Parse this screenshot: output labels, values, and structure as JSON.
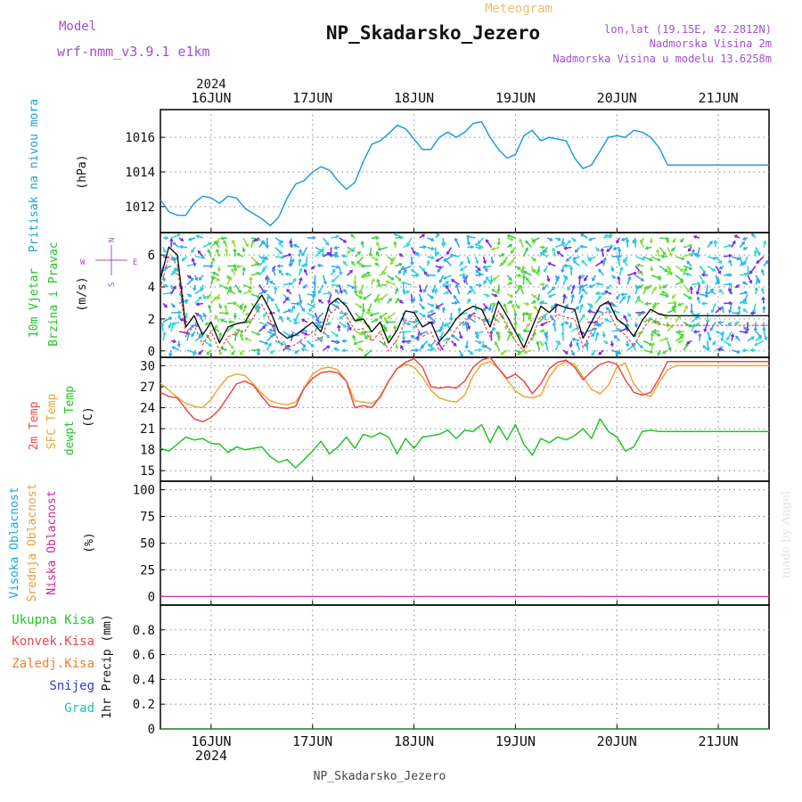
{
  "header": {
    "model_label": "Model",
    "model_name": "wrf-nmm_v3.9.1 e1km",
    "meteogram_label": "Meteogram",
    "station_title": "NP_Skadarsko_Jezero",
    "lonlat": "lon,lat (19.15E, 42.2812N)",
    "altitude": "Nadmorska Visina 2m",
    "model_altitude": "Nadmorska Visina u modelu 13.6258m",
    "year_top": "2024",
    "year_bottom": "2024",
    "footer_station": "NP_Skadarsko_Jezero",
    "credit": "made by Angel"
  },
  "colors": {
    "pressure": "#1e9fd8",
    "temp2m": "#ec4848",
    "sfc_temp": "#e8a93a",
    "dewpt": "#22c427",
    "high_cloud": "#19a6dc",
    "mid_cloud": "#e4a03c",
    "low_cloud": "#d9259a",
    "title_purple": "#a050d0",
    "meteogram_orange": "#e8c070",
    "total_precip": "#22c427",
    "conv_precip": "#ec4848",
    "frozen_precip": "#f08030",
    "snow": "#3434e0",
    "graupel": "#22c0b0"
  },
  "chart_data": [
    {
      "type": "line",
      "panel": "pressure",
      "ylabel_main": "Pritisak na nivou mora",
      "unit": "(hPa)",
      "x_tick_labels": [
        "16JUN",
        "17JUN",
        "18JUN",
        "19JUN",
        "20JUN",
        "21JUN"
      ],
      "ylim": [
        1010.5,
        1017.6
      ],
      "yticks": [
        1012,
        1014,
        1016
      ],
      "grid": true,
      "series": [
        {
          "name": "Pritisak na nivou mora",
          "x_hours": [
            0,
            2,
            4,
            6,
            8,
            10,
            12,
            14,
            16,
            18,
            20,
            22,
            24,
            26,
            28,
            30,
            32,
            34,
            36,
            38,
            40,
            42,
            44,
            46,
            48,
            50,
            52,
            54,
            56,
            58,
            60,
            62,
            64,
            66,
            68,
            70,
            72,
            74,
            76,
            78,
            80,
            82,
            84,
            86,
            88,
            90,
            92,
            94,
            96,
            98,
            100,
            102,
            104,
            106,
            108,
            110,
            112,
            114,
            116,
            118,
            120,
            122,
            124,
            126,
            128,
            130,
            132,
            134,
            136,
            138,
            140,
            142,
            144
          ],
          "values": [
            1012.4,
            1011.7,
            1011.5,
            1011.5,
            1012.2,
            1012.6,
            1012.5,
            1012.2,
            1012.6,
            1012.5,
            1011.9,
            1011.6,
            1011.3,
            1010.9,
            1011.4,
            1012.5,
            1013.3,
            1013.5,
            1014.0,
            1014.3,
            1014.1,
            1013.5,
            1013.0,
            1013.4,
            1014.6,
            1015.6,
            1015.8,
            1016.2,
            1016.7,
            1016.5,
            1015.9,
            1015.3,
            1015.3,
            1016.0,
            1016.3,
            1016.0,
            1016.3,
            1016.8,
            1016.9,
            1016.0,
            1015.3,
            1014.8,
            1015.0,
            1016.1,
            1016.4,
            1015.8,
            1016.0,
            1015.9,
            1015.8,
            1014.8,
            1014.2,
            1014.4,
            1015.2,
            1016.0,
            1016.1,
            1016.0,
            1016.4,
            1016.3,
            1016.0,
            1015.4,
            1014.4,
            1014.4,
            1014.4,
            1014.4,
            1014.4,
            1014.4,
            1014.4,
            1014.4,
            1014.4,
            1014.4,
            1014.4,
            1014.4,
            1014.4
          ]
        }
      ]
    },
    {
      "type": "line",
      "panel": "wind",
      "ylabel_main": "10m Vjetar",
      "ylabel_sub": "Brzina i Pravac",
      "unit": "(m/s)",
      "compass": {
        "n": "N",
        "s": "S",
        "e": "E",
        "w": "W"
      },
      "ylim": [
        -0.4,
        7.4
      ],
      "yticks": [
        0,
        2,
        4,
        6
      ],
      "grid": true,
      "series": [
        {
          "name": "10m Vjetar",
          "x_hours": [
            0,
            2,
            4,
            6,
            8,
            10,
            12,
            14,
            16,
            18,
            20,
            22,
            24,
            26,
            28,
            30,
            32,
            34,
            36,
            38,
            40,
            42,
            44,
            46,
            48,
            50,
            52,
            54,
            56,
            58,
            60,
            62,
            64,
            66,
            68,
            70,
            72,
            74,
            76,
            78,
            80,
            82,
            84,
            86,
            88,
            90,
            92,
            94,
            96,
            98,
            100,
            102,
            104,
            106,
            108,
            110,
            112,
            114,
            116,
            118,
            120,
            122,
            124,
            126,
            128,
            130,
            132,
            134,
            136,
            138,
            140,
            142,
            144
          ],
          "values": [
            4.5,
            6.5,
            6.0,
            1.5,
            2.2,
            1.0,
            1.8,
            0.5,
            1.5,
            1.7,
            1.8,
            2.7,
            3.5,
            2.5,
            1.2,
            0.8,
            1.0,
            1.4,
            1.8,
            1.2,
            2.9,
            3.3,
            2.8,
            1.9,
            2.0,
            1.2,
            1.8,
            0.5,
            1.3,
            2.5,
            2.4,
            1.5,
            1.8,
            0.6,
            1.2,
            2.0,
            2.5,
            2.8,
            2.6,
            1.5,
            3.1,
            2.2,
            1.2,
            0.2,
            1.5,
            2.8,
            2.4,
            2.9,
            2.7,
            2.6,
            0.8,
            1.8,
            2.8,
            3.1,
            2.0,
            1.6,
            0.9,
            1.9,
            2.6,
            2.3,
            2.2,
            2.2,
            2.2,
            2.2,
            2.2,
            2.2,
            2.2,
            2.2,
            2.2,
            2.2,
            2.2,
            2.2,
            2.2
          ]
        }
      ]
    },
    {
      "type": "line",
      "panel": "temperature",
      "ylabel_lines": [
        "2m Temp",
        "SFC Temp",
        "dewpt Temp"
      ],
      "unit": "(C)",
      "ylim": [
        13.5,
        31.2
      ],
      "yticks": [
        15,
        18,
        21,
        24,
        27,
        30
      ],
      "grid": true,
      "series": [
        {
          "name": "2m Temp",
          "x_hours": [
            0,
            2,
            4,
            6,
            8,
            10,
            12,
            14,
            16,
            18,
            20,
            22,
            24,
            26,
            28,
            30,
            32,
            34,
            36,
            38,
            40,
            42,
            44,
            46,
            48,
            50,
            52,
            54,
            56,
            58,
            60,
            62,
            64,
            66,
            68,
            70,
            72,
            74,
            76,
            78,
            80,
            82,
            84,
            86,
            88,
            90,
            92,
            94,
            96,
            98,
            100,
            102,
            104,
            106,
            108,
            110,
            112,
            114,
            116,
            118,
            120,
            122,
            124,
            126,
            128,
            130,
            132,
            134,
            136,
            138,
            140,
            142,
            144
          ],
          "values": [
            26.2,
            25.6,
            25.4,
            23.8,
            22.4,
            22.0,
            22.6,
            23.8,
            25.6,
            27.4,
            27.8,
            27.2,
            25.6,
            24.2,
            24.0,
            23.9,
            24.2,
            26.8,
            28.2,
            29.0,
            29.2,
            29.0,
            27.8,
            24.0,
            24.3,
            24.0,
            25.6,
            27.8,
            29.6,
            30.5,
            31.0,
            29.8,
            27.0,
            26.8,
            27.0,
            26.8,
            27.8,
            29.8,
            30.8,
            31.2,
            29.6,
            28.2,
            28.8,
            27.8,
            26.0,
            27.4,
            29.6,
            30.5,
            30.8,
            29.8,
            28.0,
            29.2,
            30.2,
            30.6,
            30.2,
            28.0,
            26.2,
            25.8,
            26.2,
            28.2,
            30.6,
            30.6,
            30.6,
            30.6,
            30.6,
            30.6,
            30.6,
            30.6,
            30.6,
            30.6,
            30.6,
            30.6,
            30.6
          ]
        },
        {
          "name": "SFC Temp",
          "x_hours": [
            0,
            2,
            4,
            6,
            8,
            10,
            12,
            14,
            16,
            18,
            20,
            22,
            24,
            26,
            28,
            30,
            32,
            34,
            36,
            38,
            40,
            42,
            44,
            46,
            48,
            50,
            52,
            54,
            56,
            58,
            60,
            62,
            64,
            66,
            68,
            70,
            72,
            74,
            76,
            78,
            80,
            82,
            84,
            86,
            88,
            90,
            92,
            94,
            96,
            98,
            100,
            102,
            104,
            106,
            108,
            110,
            112,
            114,
            116,
            118,
            120,
            122,
            124,
            126,
            128,
            130,
            132,
            134,
            136,
            138,
            140,
            142,
            144
          ],
          "values": [
            27.5,
            26.5,
            25.5,
            24.6,
            24.2,
            24.0,
            25.2,
            27.0,
            28.4,
            28.8,
            28.6,
            27.4,
            26.0,
            25.0,
            24.6,
            24.4,
            24.8,
            26.8,
            28.8,
            29.6,
            29.8,
            29.4,
            27.8,
            25.0,
            24.8,
            24.6,
            25.4,
            27.8,
            29.6,
            30.2,
            29.8,
            28.4,
            26.5,
            25.4,
            25.0,
            24.8,
            25.8,
            28.6,
            30.2,
            30.6,
            29.6,
            28.0,
            26.4,
            25.6,
            25.4,
            25.8,
            28.4,
            30.0,
            30.6,
            30.2,
            28.4,
            26.6,
            26.0,
            27.2,
            29.8,
            30.4,
            27.4,
            26.0,
            25.6,
            27.6,
            29.4,
            30.0,
            30.0,
            30.0,
            30.0,
            30.0,
            30.0,
            30.0,
            30.0,
            30.0,
            30.0,
            30.0,
            30.0
          ]
        },
        {
          "name": "dewpt Temp",
          "x_hours": [
            0,
            2,
            4,
            6,
            8,
            10,
            12,
            14,
            16,
            18,
            20,
            22,
            24,
            26,
            28,
            30,
            32,
            34,
            36,
            38,
            40,
            42,
            44,
            46,
            48,
            50,
            52,
            54,
            56,
            58,
            60,
            62,
            64,
            66,
            68,
            70,
            72,
            74,
            76,
            78,
            80,
            82,
            84,
            86,
            88,
            90,
            92,
            94,
            96,
            98,
            100,
            102,
            104,
            106,
            108,
            110,
            112,
            114,
            116,
            118,
            120,
            122,
            124,
            126,
            128,
            130,
            132,
            134,
            136,
            138,
            140,
            142,
            144
          ],
          "values": [
            18.2,
            17.8,
            18.8,
            19.8,
            19.4,
            19.6,
            18.9,
            18.8,
            17.6,
            18.4,
            18.0,
            18.2,
            18.4,
            17.0,
            16.2,
            16.6,
            15.4,
            16.6,
            17.8,
            19.2,
            17.4,
            18.4,
            19.8,
            18.2,
            20.2,
            19.8,
            20.4,
            19.8,
            17.4,
            19.6,
            18.2,
            19.8,
            20.0,
            20.2,
            20.8,
            19.6,
            20.8,
            20.6,
            21.6,
            19.0,
            21.4,
            19.4,
            21.6,
            18.8,
            17.2,
            19.6,
            19.0,
            19.8,
            19.4,
            20.0,
            21.0,
            19.6,
            22.4,
            20.6,
            19.8,
            17.8,
            18.4,
            20.6,
            20.8,
            20.6,
            20.6,
            20.6,
            20.6,
            20.6,
            20.6,
            20.6,
            20.6,
            20.6,
            20.6,
            20.6,
            20.6,
            20.6,
            20.6
          ]
        }
      ]
    },
    {
      "type": "line",
      "panel": "cloud",
      "ylabel_lines": [
        "Visoka Oblacnost",
        "Srednja Oblacnost",
        "Niska Oblacnost"
      ],
      "unit": "(%)",
      "ylim": [
        -8,
        108
      ],
      "yticks": [
        0,
        25,
        50,
        75,
        100
      ],
      "grid": true,
      "series": [
        {
          "name": "Visoka Oblacnost",
          "values_constant": 0
        },
        {
          "name": "Srednja Oblacnost",
          "values_constant": 0
        },
        {
          "name": "Niska Oblacnost",
          "values_constant": 0
        }
      ]
    },
    {
      "type": "line",
      "panel": "precip",
      "legend": [
        "Ukupna Kisa",
        "Konvek.Kisa",
        "Zaledj.Kisa",
        "Snijeg",
        "Grad"
      ],
      "unit": "1hr Precip (mm)",
      "ylim": [
        0,
        1.0
      ],
      "yticks": [
        0,
        0.2,
        0.4,
        0.6,
        0.8
      ],
      "ytick_labels": [
        "0",
        "0.2",
        "0.4",
        "0.6",
        "0.8"
      ],
      "grid": true,
      "series": [
        {
          "name": "Ukupna Kisa",
          "values_constant": 0
        }
      ]
    }
  ]
}
